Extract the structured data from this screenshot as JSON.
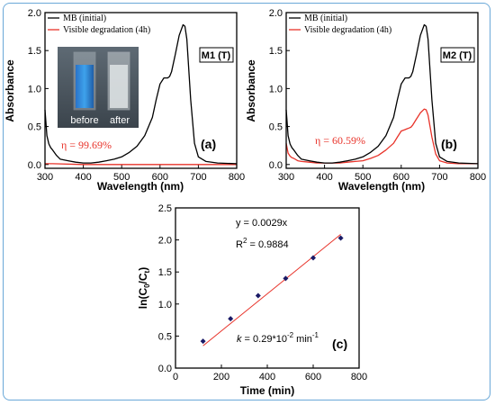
{
  "chart_data": [
    {
      "type": "line",
      "panel_label": "(a)",
      "sample_tag": "M1 (T)",
      "efficiency_text": "η = 99.69%",
      "xlabel": "Wavelength (nm)",
      "ylabel": "Absorbance",
      "xlim": [
        300,
        800
      ],
      "ylim": [
        -0.05,
        2.0
      ],
      "xticks": [
        300,
        400,
        500,
        600,
        700,
        800
      ],
      "yticks": [
        0.0,
        0.5,
        1.0,
        1.5,
        2.0
      ],
      "legend": [
        "MB (initial)",
        "Visible degradation (4h)"
      ],
      "photo_labels": [
        "before",
        "after"
      ],
      "series": [
        {
          "name": "MB (initial)",
          "color": "#000000",
          "x": [
            300,
            305,
            310,
            315,
            320,
            330,
            340,
            360,
            380,
            400,
            420,
            440,
            460,
            480,
            500,
            520,
            540,
            560,
            580,
            590,
            600,
            610,
            615,
            620,
            625,
            630,
            640,
            650,
            660,
            665,
            670,
            680,
            690,
            700,
            720,
            750,
            800
          ],
          "y": [
            0.72,
            0.38,
            0.27,
            0.22,
            0.19,
            0.12,
            0.07,
            0.05,
            0.03,
            0.02,
            0.02,
            0.03,
            0.05,
            0.07,
            0.1,
            0.16,
            0.24,
            0.38,
            0.62,
            0.85,
            1.06,
            1.14,
            1.14,
            1.14,
            1.16,
            1.22,
            1.45,
            1.7,
            1.84,
            1.82,
            1.65,
            0.85,
            0.28,
            0.1,
            0.04,
            0.02,
            0.01
          ]
        },
        {
          "name": "Visible degradation (4h)",
          "color": "#e8332a",
          "x": [
            300,
            320,
            400,
            500,
            600,
            700,
            800
          ],
          "y": [
            0.01,
            0.01,
            0.0,
            0.0,
            0.0,
            0.0,
            0.0
          ]
        }
      ]
    },
    {
      "type": "line",
      "panel_label": "(b)",
      "sample_tag": "M2 (T)",
      "efficiency_text": "η = 60.59%",
      "xlabel": "Wavelength (nm)",
      "ylabel": "Absorbance",
      "xlim": [
        300,
        800
      ],
      "ylim": [
        -0.05,
        2.0
      ],
      "xticks": [
        300,
        400,
        500,
        600,
        700,
        800
      ],
      "yticks": [
        0.0,
        0.5,
        1.0,
        1.5,
        2.0
      ],
      "legend": [
        "MB (initial)",
        "Visible degradation (4h)"
      ],
      "series": [
        {
          "name": "MB (initial)",
          "color": "#000000",
          "x": [
            300,
            305,
            310,
            315,
            320,
            330,
            340,
            360,
            380,
            400,
            420,
            440,
            460,
            480,
            500,
            520,
            540,
            560,
            580,
            590,
            600,
            610,
            615,
            620,
            625,
            630,
            640,
            650,
            660,
            665,
            670,
            680,
            690,
            700,
            720,
            750,
            800
          ],
          "y": [
            0.72,
            0.38,
            0.27,
            0.22,
            0.19,
            0.12,
            0.07,
            0.05,
            0.03,
            0.02,
            0.02,
            0.03,
            0.05,
            0.07,
            0.1,
            0.16,
            0.24,
            0.38,
            0.62,
            0.85,
            1.06,
            1.14,
            1.14,
            1.14,
            1.16,
            1.22,
            1.45,
            1.7,
            1.84,
            1.82,
            1.65,
            0.85,
            0.28,
            0.1,
            0.04,
            0.02,
            0.01
          ]
        },
        {
          "name": "Visible degradation (4h)",
          "color": "#e8332a",
          "x": [
            300,
            305,
            310,
            315,
            320,
            330,
            340,
            360,
            380,
            400,
            420,
            440,
            460,
            480,
            500,
            520,
            540,
            560,
            580,
            590,
            600,
            610,
            615,
            620,
            625,
            630,
            640,
            650,
            660,
            665,
            670,
            680,
            690,
            700,
            720,
            750,
            800
          ],
          "y": [
            0.28,
            0.15,
            0.11,
            0.09,
            0.08,
            0.05,
            0.04,
            0.03,
            0.02,
            0.02,
            0.02,
            0.02,
            0.03,
            0.04,
            0.05,
            0.08,
            0.12,
            0.19,
            0.28,
            0.36,
            0.44,
            0.46,
            0.47,
            0.48,
            0.49,
            0.52,
            0.6,
            0.68,
            0.73,
            0.72,
            0.65,
            0.36,
            0.14,
            0.05,
            0.02,
            0.01,
            0.01
          ]
        }
      ]
    },
    {
      "type": "scatter",
      "panel_label": "(c)",
      "xlabel": "Time (min)",
      "ylabel": "ln(C0/Ct)",
      "xlim": [
        0,
        800
      ],
      "ylim": [
        0,
        2.5
      ],
      "xticks": [
        0,
        200,
        400,
        600,
        800
      ],
      "yticks": [
        0.0,
        0.5,
        1.0,
        1.5,
        2.0,
        2.5
      ],
      "equation": "y = 0.0029x",
      "r_squared": "R2 = 0.9884",
      "rate_constant": "k = 0.29*10-2 min-1",
      "points": {
        "color": "#1a1a66",
        "x": [
          120,
          240,
          360,
          480,
          600,
          720
        ],
        "y": [
          0.42,
          0.77,
          1.13,
          1.4,
          1.72,
          2.03
        ]
      },
      "fit": {
        "color": "#e8332a",
        "slope": 0.0029,
        "x": [
          120,
          720
        ]
      }
    }
  ]
}
